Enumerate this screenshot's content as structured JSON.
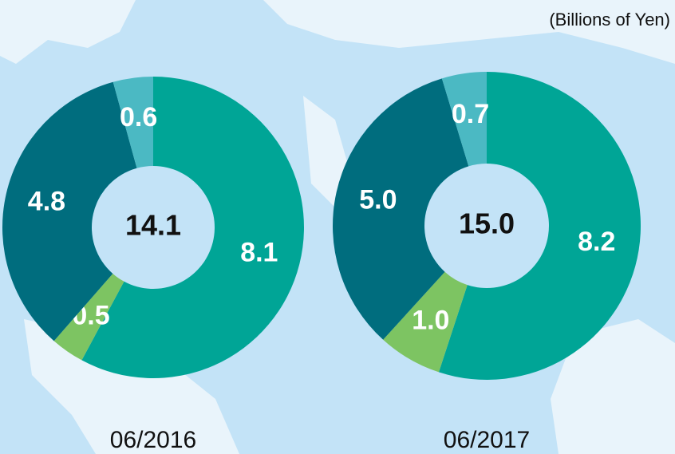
{
  "unit_label": "(Billions of Yen)",
  "chart_data": [
    {
      "type": "donut",
      "title": "06/2016",
      "center_label": "14.1",
      "values": [
        8.1,
        0.5,
        4.8,
        0.6
      ],
      "value_labels": [
        "8.1",
        "0.5",
        "4.8",
        "0.6"
      ],
      "colors": [
        "#00a596",
        "#7dc462",
        "#006d7e",
        "#4bb9c3"
      ]
    },
    {
      "type": "donut",
      "title": "06/2017",
      "center_label": "15.0",
      "values": [
        8.2,
        1.0,
        5.0,
        0.7
      ],
      "value_labels": [
        "8.2",
        "1.0",
        "5.0",
        "0.7"
      ],
      "colors": [
        "#00a596",
        "#7dc462",
        "#006d7e",
        "#4bb9c3"
      ]
    }
  ]
}
